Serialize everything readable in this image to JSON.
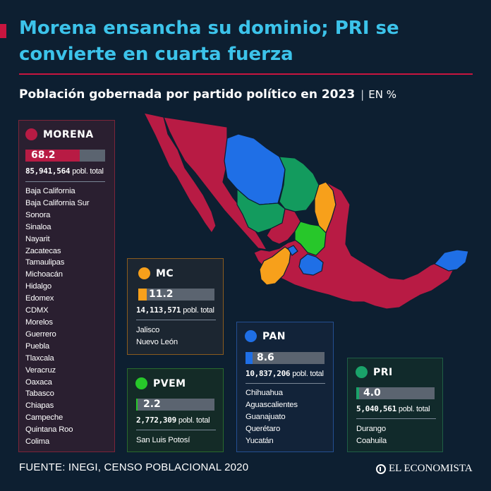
{
  "header": {
    "title": "Morena ensancha su dominio; PRI se convierte en cuarta fuerza",
    "subtitle": "Población gobernada por partido político en 2023",
    "unit": "EN %"
  },
  "colors": {
    "morena": "#b81b44",
    "mc": "#f7a01b",
    "pan": "#1f6fe6",
    "pvem": "#27c72a",
    "pri": "#1aa36a",
    "pri_map": "#139b5e",
    "background": "#0d1f31",
    "title": "#3cc3ea",
    "accent": "#c8153f"
  },
  "chart_data": {
    "type": "bar",
    "title": "Población gobernada por partido político en 2023",
    "unit": "EN %",
    "max": 100,
    "categories": [
      "MORENA",
      "MC",
      "PAN",
      "PVEM",
      "PRI"
    ],
    "values": [
      68.2,
      11.2,
      8.6,
      2.2,
      4.0
    ],
    "value_labels": [
      "68.2",
      "11.2",
      "8.6",
      "2.2",
      "4.0"
    ],
    "population": [
      "85,941,564",
      "14,113,571",
      "10,837,206",
      "2,772,309",
      "5,040,561"
    ],
    "population_label": "pobl. total"
  },
  "parties": {
    "morena": {
      "name": "MORENA",
      "states": [
        "Baja California",
        "Baja California Sur",
        "Sonora",
        "Sinaloa",
        "Nayarit",
        "Zacatecas",
        "Tamaulipas",
        "Michoacán",
        "Hidalgo",
        "Edomex",
        "CDMX",
        "Morelos",
        "Guerrero",
        "Puebla",
        "Tlaxcala",
        "Veracruz",
        "Oaxaca",
        "Tabasco",
        "Chiapas",
        "Campeche",
        "Quintana Roo",
        "Colima"
      ]
    },
    "mc": {
      "name": "MC",
      "states": [
        "Jalisco",
        "Nuevo León"
      ]
    },
    "pan": {
      "name": "PAN",
      "states": [
        "Chihuahua",
        "Aguascalientes",
        "Guanajuato",
        "Querétaro",
        "Yucatán"
      ]
    },
    "pvem": {
      "name": "PVEM",
      "states": [
        "San Luis Potosí"
      ]
    },
    "pri": {
      "name": "PRI",
      "states": [
        "Durango",
        "Coahuila"
      ]
    }
  },
  "footer": {
    "source": "FUENTE: INEGI, CENSO POBLACIONAL 2020",
    "logo": "EL ECONOMISTA"
  }
}
